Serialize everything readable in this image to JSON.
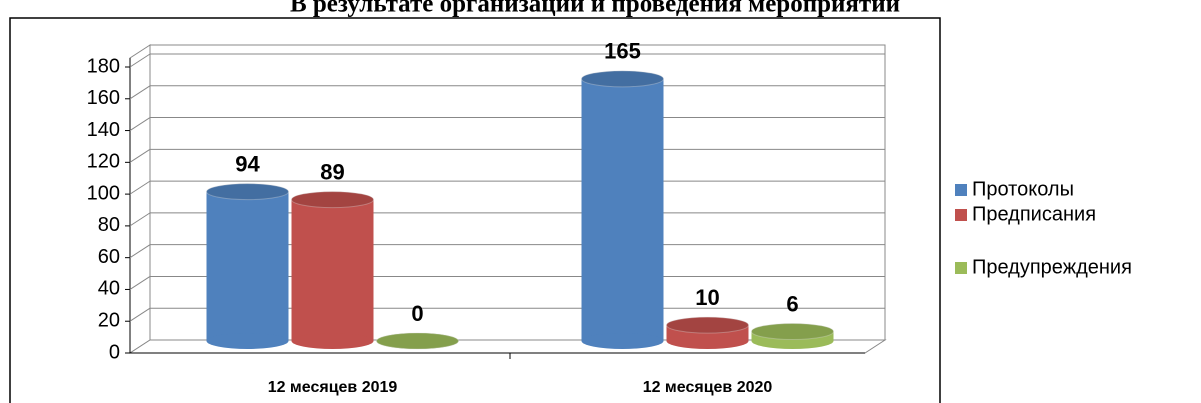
{
  "chart_data": {
    "type": "bar3d",
    "title": "В результате организации и проведения мероприятий",
    "categories": [
      "12 месяцев 2019",
      "12 месяцев 2020"
    ],
    "series": [
      {
        "name": "Протоколы",
        "color": "#4f81bd",
        "values": [
          94,
          165
        ]
      },
      {
        "name": "Предписания",
        "color": "#c0504d",
        "values": [
          89,
          10
        ]
      },
      {
        "name": "Предупреждения",
        "color": "#9bbb59",
        "values": [
          0,
          6
        ]
      }
    ],
    "ylim": [
      0,
      180
    ],
    "yticks": [
      0,
      20,
      40,
      60,
      80,
      100,
      120,
      140,
      160,
      180
    ],
    "grid": true,
    "legend": "right"
  }
}
